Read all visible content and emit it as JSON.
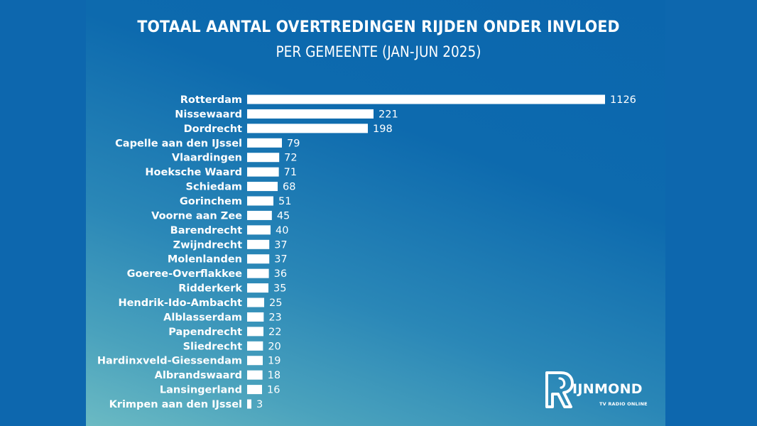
{
  "chart_data": {
    "type": "bar",
    "orientation": "horizontal",
    "title": "TOTAAL AANTAL OVERTREDINGEN RIJDEN ONDER INVLOED",
    "subtitle": "PER GEMEENTE (JAN-JUN 2025)",
    "xlabel": "",
    "ylabel": "",
    "grid": false,
    "legend": "none",
    "categories": [
      "Rotterdam",
      "Nissewaard",
      "Dordrecht",
      "Capelle aan den IJssel",
      "Vlaardingen",
      "Hoeksche Waard",
      "Schiedam",
      "Gorinchem",
      "Voorne aan Zee",
      "Barendrecht",
      "Zwijndrecht",
      "Molenlanden",
      "Goeree-Overflakkee",
      "Ridderkerk",
      "Hendrik-Ido-Ambacht",
      "Alblasserdam",
      "Papendrecht",
      "Sliedrecht",
      "Hardinxveld-Giessendam",
      "Albrandswaard",
      "Lansingerland",
      "Krimpen aan den IJssel"
    ],
    "values": [
      1126,
      221,
      198,
      79,
      72,
      71,
      68,
      51,
      45,
      40,
      37,
      37,
      36,
      35,
      25,
      23,
      22,
      20,
      19,
      18,
      16,
      3
    ],
    "data_labels": [
      "1126",
      "221",
      "198",
      "79",
      "72",
      "71",
      "68",
      "51",
      "45",
      "40",
      "37",
      "37",
      "36",
      "35",
      "25",
      "23",
      "22",
      "20",
      "19",
      "18",
      "16",
      "3"
    ],
    "bar_color": "#ffffff",
    "text_color": "#ffffff"
  },
  "branding": {
    "logo_letter": "R",
    "logo_word": "IJNMOND",
    "logo_tagline": "TV RADIO ONLINE"
  },
  "colors": {
    "frame": "#0d67ae",
    "gradient_top": "#0b66ad",
    "gradient_bottom": "#6bbac3"
  }
}
